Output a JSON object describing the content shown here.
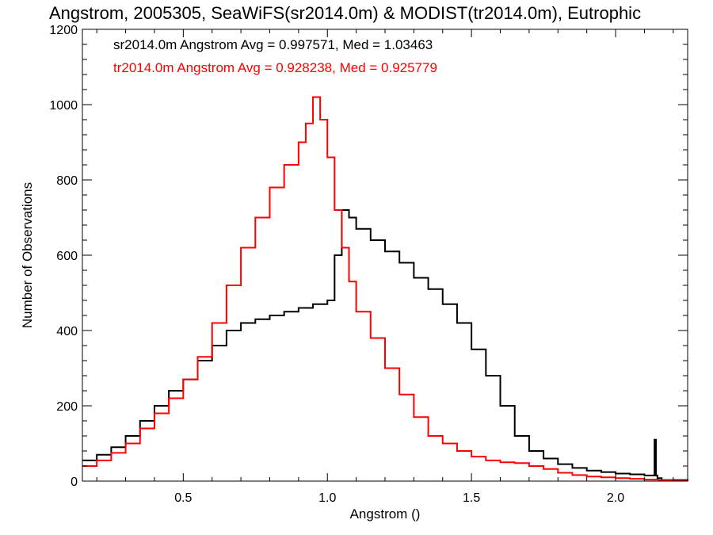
{
  "chart_data": {
    "type": "line",
    "title": "Angstrom, 2005305, SeaWiFS(sr2014.0m) & MODIST(tr2014.0m), Eutrophic",
    "xlabel": "Angstrom ()",
    "ylabel": "Number of Observations",
    "xlim": [
      0.15,
      2.25
    ],
    "ylim": [
      0,
      1200
    ],
    "xticks": [
      "0.5",
      "1.0",
      "1.5",
      "2.0"
    ],
    "yticks": [
      "0",
      "200",
      "400",
      "600",
      "800",
      "1000",
      "1200"
    ],
    "grid": false,
    "annotations": [
      {
        "text": "sr2014.0m Angstrom Avg = 0.997571, Med = 1.03463",
        "color": "#000000"
      },
      {
        "text": "tr2014.0m Angstrom Avg = 0.928238, Med = 0.925779",
        "color": "#ff0000"
      }
    ],
    "series": [
      {
        "color": "#000000",
        "x": [
          0.15,
          0.2,
          0.25,
          0.3,
          0.35,
          0.4,
          0.45,
          0.5,
          0.55,
          0.6,
          0.65,
          0.7,
          0.75,
          0.8,
          0.85,
          0.9,
          0.95,
          1.0,
          1.025,
          1.05,
          1.075,
          1.1,
          1.15,
          1.2,
          1.25,
          1.3,
          1.35,
          1.4,
          1.45,
          1.5,
          1.55,
          1.6,
          1.65,
          1.7,
          1.75,
          1.8,
          1.85,
          1.9,
          1.95,
          2.0,
          2.05,
          2.1,
          2.135,
          2.14,
          2.145,
          2.16,
          2.25
        ],
        "y": [
          55,
          70,
          90,
          120,
          160,
          200,
          240,
          270,
          320,
          360,
          400,
          420,
          430,
          440,
          450,
          460,
          470,
          480,
          600,
          720,
          700,
          670,
          640,
          610,
          580,
          540,
          510,
          470,
          420,
          350,
          280,
          200,
          120,
          80,
          60,
          45,
          35,
          28,
          24,
          20,
          18,
          15,
          110,
          15,
          8,
          3,
          0
        ]
      },
      {
        "color": "#ff0000",
        "x": [
          0.15,
          0.2,
          0.25,
          0.3,
          0.35,
          0.4,
          0.45,
          0.5,
          0.55,
          0.6,
          0.65,
          0.7,
          0.75,
          0.8,
          0.85,
          0.9,
          0.925,
          0.95,
          0.975,
          1.0,
          1.025,
          1.05,
          1.075,
          1.1,
          1.15,
          1.2,
          1.25,
          1.3,
          1.35,
          1.4,
          1.45,
          1.5,
          1.55,
          1.6,
          1.65,
          1.7,
          1.75,
          1.8,
          1.85,
          1.9,
          1.95,
          2.0,
          2.05,
          2.1,
          2.15,
          2.2,
          2.25
        ],
        "y": [
          40,
          55,
          75,
          100,
          140,
          180,
          220,
          270,
          330,
          420,
          520,
          620,
          700,
          780,
          840,
          900,
          950,
          1020,
          960,
          860,
          720,
          620,
          530,
          450,
          380,
          300,
          230,
          170,
          120,
          100,
          80,
          65,
          55,
          50,
          48,
          40,
          32,
          22,
          16,
          12,
          10,
          8,
          6,
          4,
          2,
          1,
          0
        ]
      }
    ]
  }
}
